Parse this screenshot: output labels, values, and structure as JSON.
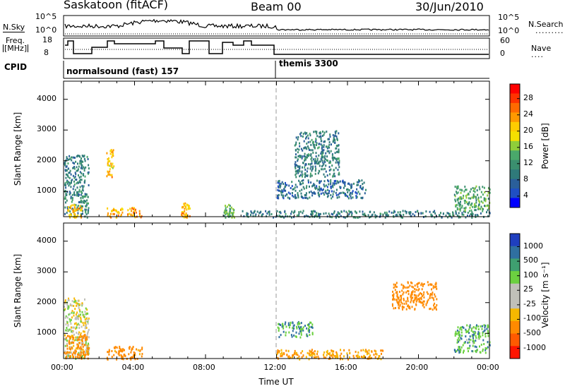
{
  "header": {
    "station": "Saskatoon (fitACF)",
    "beam": "Beam 00",
    "date": "30/Jun/2010"
  },
  "summary": {
    "nsky_label": "N.Sky",
    "nsky_ticks": [
      "10^5",
      "10^0"
    ],
    "nsearch_label": "N.Search",
    "nsearch_ticks": [
      "10^5",
      "10^0"
    ],
    "freq_label_1": "Freq.",
    "freq_label_2": "[MHz]",
    "freq_ticks": [
      "18",
      "8"
    ],
    "nave_label": "Nave",
    "nave_ticks": [
      "60",
      "0"
    ],
    "cpid_label": "CPID",
    "cpid_modes": [
      {
        "name": "normalsound (fast) 157",
        "start_hour": 0
      },
      {
        "name": "themis 3300",
        "start_hour": 12
      }
    ]
  },
  "panels": {
    "power": {
      "ylabel": "Slant Range [km]",
      "yticks": [
        "4000",
        "3000",
        "2000",
        "1000"
      ],
      "cbar_label": "Power [dB]",
      "cbar_ticks": [
        "28",
        "24",
        "20",
        "16",
        "12",
        "8",
        "4"
      ],
      "cbar_colors": [
        "#ff0000",
        "#ff3300",
        "#ff6a00",
        "#ff9900",
        "#ffcc00",
        "#f5e000",
        "#8fce3a",
        "#4aa86b",
        "#3b8f6f",
        "#2f7a7a",
        "#2a5f9a",
        "#1f4fc4",
        "#0000ff"
      ]
    },
    "velocity": {
      "ylabel": "Slant Range [km]",
      "yticks": [
        "4000",
        "3000",
        "2000",
        "1000"
      ],
      "cbar_label": "Velocity [m s⁻¹]",
      "cbar_ticks": [
        "1000",
        "500",
        "100",
        "25",
        "-25",
        "-100",
        "-500",
        "-1000"
      ],
      "cbar_colors": [
        "#1f3fbf",
        "#2f6fa0",
        "#3f9f70",
        "#6cd040",
        "#c0c0b8",
        "#c0c0b8",
        "#f5b800",
        "#ff8a00",
        "#ff5a00",
        "#ff1500"
      ]
    }
  },
  "xaxis": {
    "label": "Time UT",
    "ticks": [
      "00:00",
      "04:00",
      "08:00",
      "12:00",
      "16:00",
      "20:00",
      "00:00"
    ]
  },
  "chart_data": [
    {
      "type": "heatmap",
      "title": "Saskatoon (fitACF) Beam 00 30/Jun/2010",
      "quantity": "Power",
      "unit": "dB",
      "xlabel": "Time UT",
      "ylabel": "Slant Range [km]",
      "xlim_hours": [
        0,
        24
      ],
      "ylim": [
        180,
        4590
      ],
      "clim": [
        0,
        30
      ],
      "echo_regions": [
        {
          "t0": 0.0,
          "t1": 1.4,
          "r0": 180,
          "r1": 2200,
          "value": 8
        },
        {
          "t0": 0.2,
          "t1": 1.0,
          "r0": 180,
          "r1": 600,
          "value": 20
        },
        {
          "t0": 2.4,
          "t1": 2.8,
          "r0": 1500,
          "r1": 2400,
          "value": 20
        },
        {
          "t0": 2.4,
          "t1": 4.4,
          "r0": 180,
          "r1": 500,
          "value": 22
        },
        {
          "t0": 6.6,
          "t1": 7.1,
          "r0": 180,
          "r1": 650,
          "value": 20
        },
        {
          "t0": 9.0,
          "t1": 9.6,
          "r0": 180,
          "r1": 600,
          "value": 12
        },
        {
          "t0": 10.0,
          "t1": 24.0,
          "r0": 180,
          "r1": 400,
          "value": 8
        },
        {
          "t0": 12.0,
          "t1": 17.0,
          "r0": 800,
          "r1": 1400,
          "value": 6
        },
        {
          "t0": 13.0,
          "t1": 15.5,
          "r0": 1500,
          "r1": 3000,
          "value": 8
        },
        {
          "t0": 22.0,
          "t1": 24.0,
          "r0": 400,
          "r1": 1200,
          "value": 12
        }
      ]
    },
    {
      "type": "heatmap",
      "title": "Saskatoon (fitACF) Beam 00 30/Jun/2010",
      "quantity": "Velocity",
      "unit": "m s⁻¹",
      "xlabel": "Time UT",
      "ylabel": "Slant Range [km]",
      "xlim_hours": [
        0,
        24
      ],
      "ylim": [
        180,
        4590
      ],
      "clim": [
        -1000,
        1000
      ],
      "echo_regions": [
        {
          "t0": 0.0,
          "t1": 1.4,
          "r0": 180,
          "r1": 2200,
          "value": 0
        },
        {
          "t0": 0.0,
          "t1": 1.4,
          "r0": 180,
          "r1": 1000,
          "value": -150
        },
        {
          "t0": 2.4,
          "t1": 4.4,
          "r0": 180,
          "r1": 600,
          "value": -150
        },
        {
          "t0": 12.0,
          "t1": 18.0,
          "r0": 180,
          "r1": 500,
          "value": -100
        },
        {
          "t0": 12.0,
          "t1": 14.0,
          "r0": 900,
          "r1": 1400,
          "value": 100
        },
        {
          "t0": 18.5,
          "t1": 21.0,
          "r0": 1800,
          "r1": 2700,
          "value": -300
        },
        {
          "t0": 22.0,
          "t1": 24.0,
          "r0": 400,
          "r1": 1300,
          "value": 80
        }
      ]
    }
  ]
}
